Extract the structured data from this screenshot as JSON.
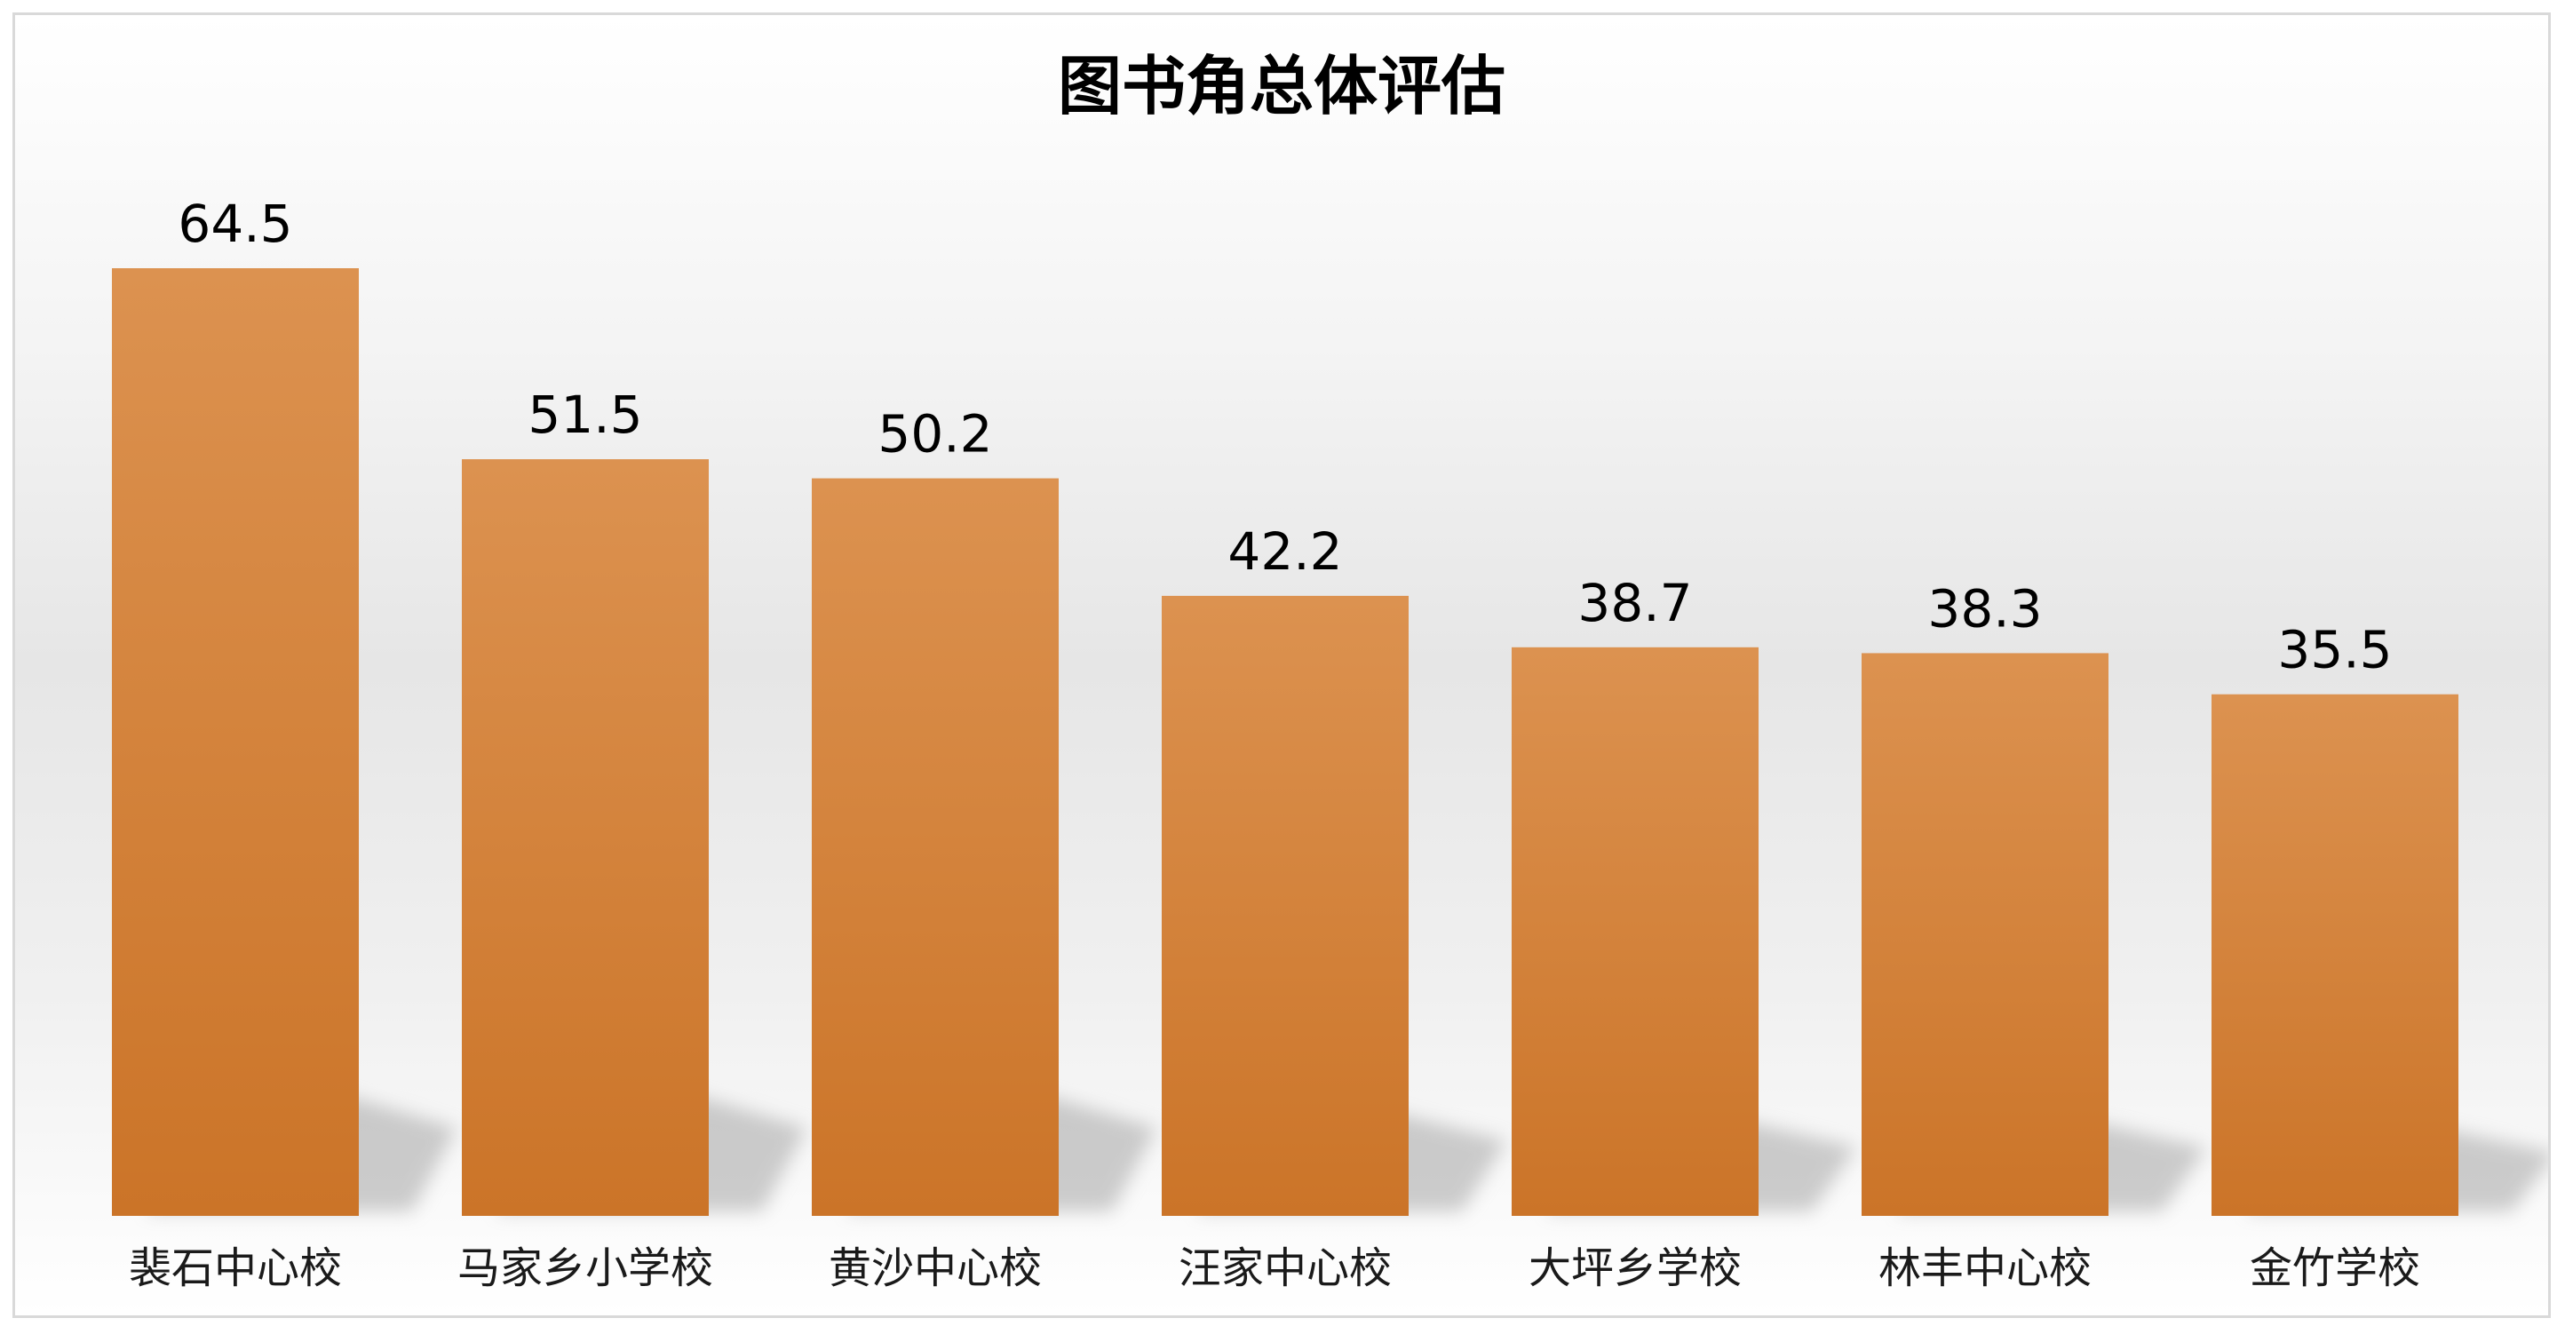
{
  "chart_data": {
    "type": "bar",
    "title": "图书角总体评估",
    "categories": [
      "裴石中心校",
      "马家乡小学校",
      "黄沙中心校",
      "汪家中心校",
      "大坪乡学校",
      "林丰中心校",
      "金竹学校"
    ],
    "values": [
      64.5,
      51.5,
      50.2,
      42.2,
      38.7,
      38.3,
      35.5
    ],
    "ylim": [
      0,
      70
    ],
    "grid": false,
    "data_labels": true,
    "colors": {
      "bar_top": "#dc9250",
      "bar_bottom": "#cb7428",
      "shadow": "#9a9a9a"
    }
  }
}
